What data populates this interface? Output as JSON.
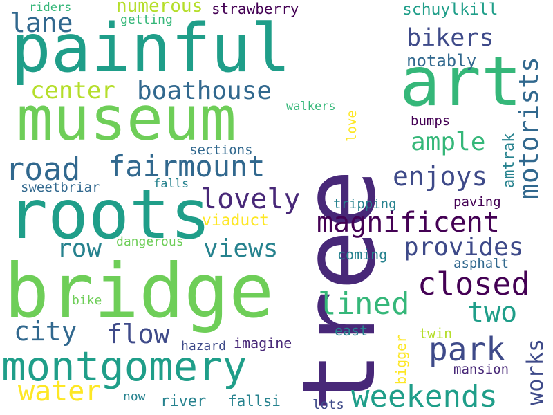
{
  "colors": {
    "background": "#ffffff",
    "palette": {
      "dark_purple": "#440154",
      "purple": "#482878",
      "indigo": "#3e4a89",
      "slate_blue": "#31688e",
      "steel_blue": "#26828e",
      "teal": "#1f9e89",
      "green_teal": "#35b779",
      "green": "#6ece58",
      "lime": "#b5de2b",
      "yellow": "#fde725"
    }
  },
  "words": [
    {
      "text": "tree",
      "color": "#482878",
      "vertical": true
    },
    {
      "text": "painful",
      "color": "#1f9e89",
      "vertical": false
    },
    {
      "text": "art",
      "color": "#35b779",
      "vertical": false
    },
    {
      "text": "museum",
      "color": "#6ece58",
      "vertical": false
    },
    {
      "text": "roots",
      "color": "#1f9e89",
      "vertical": false
    },
    {
      "text": "bridge",
      "color": "#6ece58",
      "vertical": false
    },
    {
      "text": "montgomery",
      "color": "#1f9e89",
      "vertical": false
    },
    {
      "text": "lane",
      "color": "#31688e",
      "vertical": false
    },
    {
      "text": "numerous",
      "color": "#b5de2b",
      "vertical": false
    },
    {
      "text": "strawberry",
      "color": "#440154",
      "vertical": false
    },
    {
      "text": "schuylkill",
      "color": "#1f9e89",
      "vertical": false
    },
    {
      "text": "riders",
      "color": "#35b779",
      "vertical": false
    },
    {
      "text": "getting",
      "color": "#35b779",
      "vertical": false
    },
    {
      "text": "bikers",
      "color": "#3e4a89",
      "vertical": false
    },
    {
      "text": "motorists",
      "color": "#31688e",
      "vertical": true
    },
    {
      "text": "notably",
      "color": "#31688e",
      "vertical": false
    },
    {
      "text": "center",
      "color": "#b5de2b",
      "vertical": false
    },
    {
      "text": "boathouse",
      "color": "#31688e",
      "vertical": false
    },
    {
      "text": "walkers",
      "color": "#35b779",
      "vertical": false
    },
    {
      "text": "love",
      "color": "#fde725",
      "vertical": true
    },
    {
      "text": "bumps",
      "color": "#440154",
      "vertical": false
    },
    {
      "text": "amtrak",
      "color": "#26828e",
      "vertical": true
    },
    {
      "text": "ample",
      "color": "#35b779",
      "vertical": false
    },
    {
      "text": "sections",
      "color": "#31688e",
      "vertical": false
    },
    {
      "text": "fairmount",
      "color": "#31688e",
      "vertical": false
    },
    {
      "text": "road",
      "color": "#31688e",
      "vertical": false
    },
    {
      "text": "enjoys",
      "color": "#3e4a89",
      "vertical": false
    },
    {
      "text": "sweetbriar",
      "color": "#31688e",
      "vertical": false
    },
    {
      "text": "falls",
      "color": "#26828e",
      "vertical": false
    },
    {
      "text": "lovely",
      "color": "#482878",
      "vertical": false
    },
    {
      "text": "tripping",
      "color": "#26828e",
      "vertical": false
    },
    {
      "text": "paving",
      "color": "#440154",
      "vertical": false
    },
    {
      "text": "viaduct",
      "color": "#fde725",
      "vertical": false
    },
    {
      "text": "magnificent",
      "color": "#440154",
      "vertical": false
    },
    {
      "text": "dangerous",
      "color": "#6ece58",
      "vertical": false
    },
    {
      "text": "row",
      "color": "#26828e",
      "vertical": false
    },
    {
      "text": "views",
      "color": "#26828e",
      "vertical": false
    },
    {
      "text": "provides",
      "color": "#3e4a89",
      "vertical": false
    },
    {
      "text": "coming",
      "color": "#26828e",
      "vertical": false
    },
    {
      "text": "asphalt",
      "color": "#31688e",
      "vertical": false
    },
    {
      "text": "closed",
      "color": "#440154",
      "vertical": false
    },
    {
      "text": "lined",
      "color": "#35b779",
      "vertical": false
    },
    {
      "text": "bike",
      "color": "#6ece58",
      "vertical": false
    },
    {
      "text": "two",
      "color": "#1f9e89",
      "vertical": false
    },
    {
      "text": "city",
      "color": "#31688e",
      "vertical": false
    },
    {
      "text": "flow",
      "color": "#3e4a89",
      "vertical": false
    },
    {
      "text": "east",
      "color": "#26828e",
      "vertical": false
    },
    {
      "text": "twin",
      "color": "#b5de2b",
      "vertical": false
    },
    {
      "text": "works",
      "color": "#3e4a89",
      "vertical": true
    },
    {
      "text": "park",
      "color": "#3e4a89",
      "vertical": false
    },
    {
      "text": "hazard",
      "color": "#3e4a89",
      "vertical": false
    },
    {
      "text": "imagine",
      "color": "#482878",
      "vertical": false
    },
    {
      "text": "bigger",
      "color": "#fde725",
      "vertical": true
    },
    {
      "text": "mansion",
      "color": "#482878",
      "vertical": false
    },
    {
      "text": "water",
      "color": "#fde725",
      "vertical": false
    },
    {
      "text": "weekends",
      "color": "#1f9e89",
      "vertical": false
    },
    {
      "text": "now",
      "color": "#26828e",
      "vertical": false
    },
    {
      "text": "river",
      "color": "#26828e",
      "vertical": false
    },
    {
      "text": "fallsi",
      "color": "#26828e",
      "vertical": false
    },
    {
      "text": "lots",
      "color": "#3e4a89",
      "vertical": false
    }
  ]
}
